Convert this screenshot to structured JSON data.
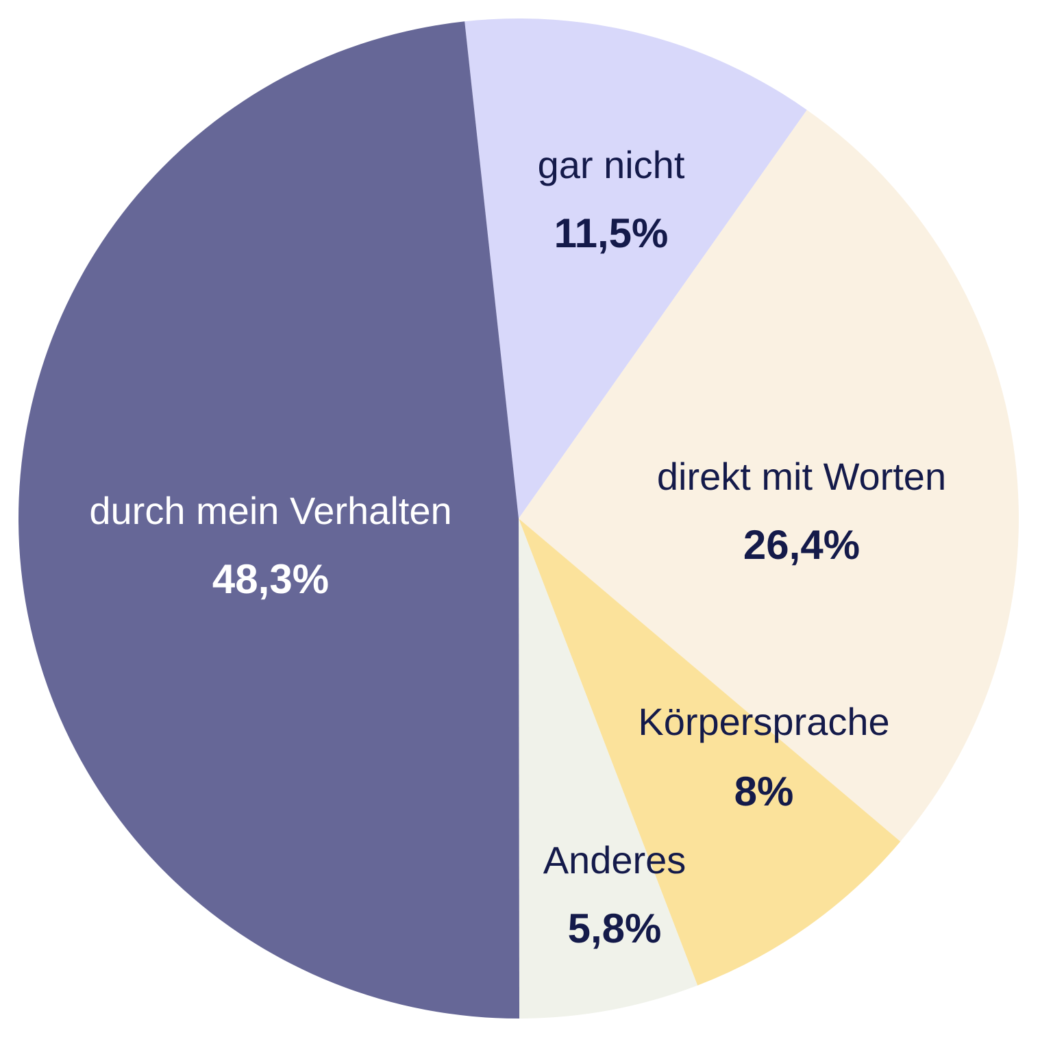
{
  "chart_data": {
    "type": "pie",
    "title": "",
    "start_angle_deg": -6.2,
    "direction": "clockwise",
    "slices": [
      {
        "label": "gar nicht",
        "value_label": "11,5%",
        "value": 11.5,
        "color": "#d8d8fa",
        "text_color": "#141a4a"
      },
      {
        "label": "direkt mit Worten",
        "value_label": "26,4%",
        "value": 26.4,
        "color": "#faf1e2",
        "text_color": "#141a4a"
      },
      {
        "label": "Körpersprache",
        "value_label": "8%",
        "value": 8,
        "color": "#fbe29b",
        "text_color": "#141a4a"
      },
      {
        "label": "Anderes",
        "value_label": "5,8%",
        "value": 5.8,
        "color": "#f0f2ea",
        "text_color": "#141a4a"
      },
      {
        "label": "durch mein Verhalten",
        "value_label": "48,3%",
        "value": 48.3,
        "color": "#666797",
        "text_color": "#ffffff"
      }
    ]
  }
}
